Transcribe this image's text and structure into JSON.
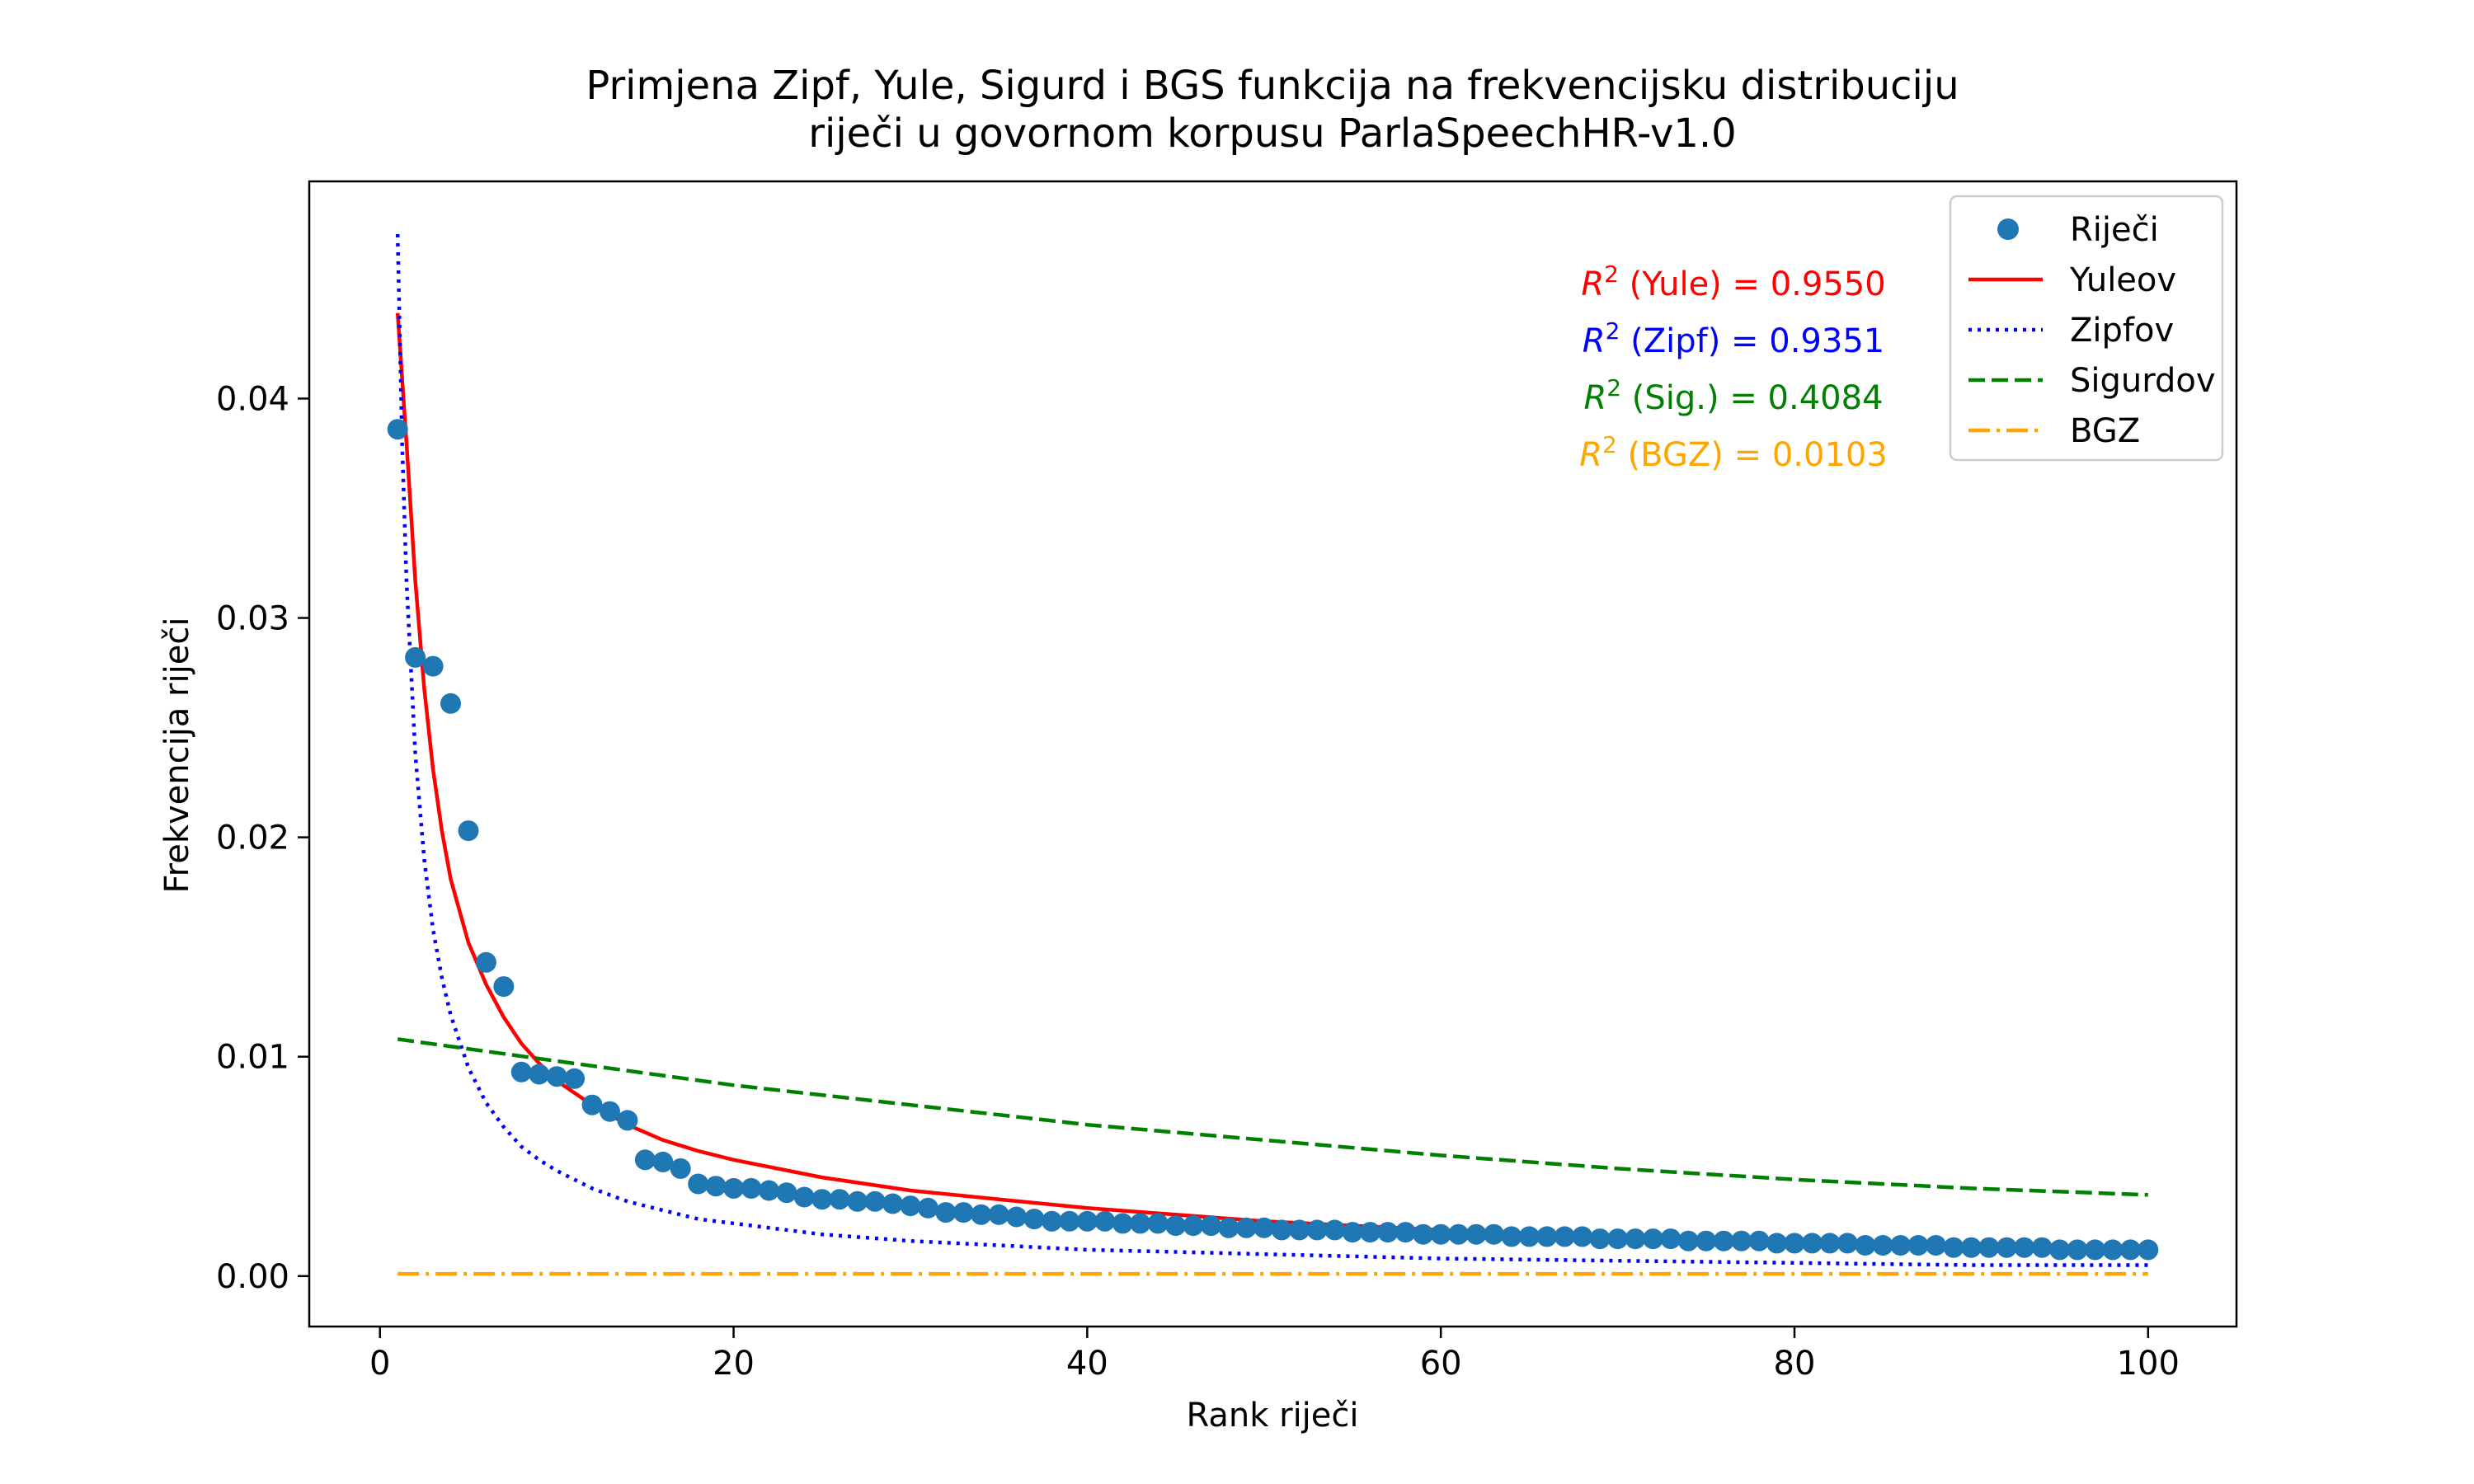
{
  "chart_data": {
    "type": "scatter",
    "title_lines": [
      "Primjena Zipf, Yule, Sigurd i BGS funkcija na frekvencijsku distribuciju",
      "riječi u govornom korpusu ParlaSpeechHR-v1.0"
    ],
    "xlabel": "Rank riječi",
    "ylabel": "Frekvencija riječi",
    "xlim": [
      -4.0,
      105.0
    ],
    "ylim": [
      -0.0023,
      0.0499
    ],
    "x_ticks": [
      0,
      20,
      40,
      60,
      80,
      100
    ],
    "y_ticks": [
      0.0,
      0.01,
      0.02,
      0.03,
      0.04
    ],
    "x_tick_labels": [
      "0",
      "20",
      "40",
      "60",
      "80",
      "100"
    ],
    "y_tick_labels": [
      "0.00",
      "0.01",
      "0.02",
      "0.03",
      "0.04"
    ],
    "grid": false,
    "legend_position": "top-right",
    "legend": [
      {
        "label": "Riječi",
        "kind": "marker",
        "color": "#1f77b4"
      },
      {
        "label": "Yuleov",
        "kind": "solid",
        "color": "#ff0000"
      },
      {
        "label": "Zipfov",
        "kind": "dotted",
        "color": "#0000ff"
      },
      {
        "label": "Sigurdov",
        "kind": "dashed",
        "color": "#008000"
      },
      {
        "label": "BGZ",
        "kind": "dashdot",
        "color": "#ffa500"
      }
    ],
    "annotations": [
      {
        "label": "(Yule) = 0.9550",
        "color": "#ff0000"
      },
      {
        "label": "(Zipf) = 0.9351",
        "color": "#0000ff"
      },
      {
        "label": "(Sig.) = 0.4084",
        "color": "#008000"
      },
      {
        "label": "(BGZ) =  0.0103",
        "color": "#ffa500"
      }
    ],
    "r2_symbol": "R",
    "r2_superscript": "2",
    "scatter": {
      "name": "Riječi",
      "color": "#1f77b4",
      "points": [
        [
          1,
          0.0386
        ],
        [
          2,
          0.0282
        ],
        [
          3,
          0.0278
        ],
        [
          4,
          0.0261
        ],
        [
          5,
          0.0203
        ],
        [
          6,
          0.0143
        ],
        [
          7,
          0.0132
        ],
        [
          8,
          0.0093
        ],
        [
          9,
          0.0092
        ],
        [
          10,
          0.0091
        ],
        [
          11,
          0.009
        ],
        [
          12,
          0.0078
        ],
        [
          13,
          0.0075
        ],
        [
          14,
          0.0071
        ],
        [
          15,
          0.0053
        ],
        [
          16,
          0.0052
        ],
        [
          17,
          0.0049
        ],
        [
          18,
          0.0042
        ],
        [
          19,
          0.0041
        ],
        [
          20,
          0.004
        ],
        [
          21,
          0.004
        ],
        [
          22,
          0.0039
        ],
        [
          23,
          0.0038
        ],
        [
          24,
          0.0036
        ],
        [
          25,
          0.0035
        ],
        [
          26,
          0.0035
        ],
        [
          27,
          0.0034
        ],
        [
          28,
          0.0034
        ],
        [
          29,
          0.0033
        ],
        [
          30,
          0.0032
        ],
        [
          31,
          0.0031
        ],
        [
          32,
          0.0029
        ],
        [
          33,
          0.0029
        ],
        [
          34,
          0.0028
        ],
        [
          35,
          0.0028
        ],
        [
          36,
          0.0027
        ],
        [
          37,
          0.0026
        ],
        [
          38,
          0.0025
        ],
        [
          39,
          0.0025
        ],
        [
          40,
          0.0025
        ],
        [
          41,
          0.0025
        ],
        [
          42,
          0.0024
        ],
        [
          43,
          0.0024
        ],
        [
          44,
          0.0024
        ],
        [
          45,
          0.0023
        ],
        [
          46,
          0.0023
        ],
        [
          47,
          0.0023
        ],
        [
          48,
          0.0022
        ],
        [
          49,
          0.0022
        ],
        [
          50,
          0.0022
        ],
        [
          51,
          0.0021
        ],
        [
          52,
          0.0021
        ],
        [
          53,
          0.0021
        ],
        [
          54,
          0.0021
        ],
        [
          55,
          0.002
        ],
        [
          56,
          0.002
        ],
        [
          57,
          0.002
        ],
        [
          58,
          0.002
        ],
        [
          59,
          0.0019
        ],
        [
          60,
          0.0019
        ],
        [
          61,
          0.0019
        ],
        [
          62,
          0.0019
        ],
        [
          63,
          0.0019
        ],
        [
          64,
          0.0018
        ],
        [
          65,
          0.0018
        ],
        [
          66,
          0.0018
        ],
        [
          67,
          0.0018
        ],
        [
          68,
          0.0018
        ],
        [
          69,
          0.0017
        ],
        [
          70,
          0.0017
        ],
        [
          71,
          0.0017
        ],
        [
          72,
          0.0017
        ],
        [
          73,
          0.0017
        ],
        [
          74,
          0.0016
        ],
        [
          75,
          0.0016
        ],
        [
          76,
          0.0016
        ],
        [
          77,
          0.0016
        ],
        [
          78,
          0.0016
        ],
        [
          79,
          0.0015
        ],
        [
          80,
          0.0015
        ],
        [
          81,
          0.0015
        ],
        [
          82,
          0.0015
        ],
        [
          83,
          0.0015
        ],
        [
          84,
          0.0014
        ],
        [
          85,
          0.0014
        ],
        [
          86,
          0.0014
        ],
        [
          87,
          0.0014
        ],
        [
          88,
          0.0014
        ],
        [
          89,
          0.0013
        ],
        [
          90,
          0.0013
        ],
        [
          91,
          0.0013
        ],
        [
          92,
          0.0013
        ],
        [
          93,
          0.0013
        ],
        [
          94,
          0.0013
        ],
        [
          95,
          0.0012
        ],
        [
          96,
          0.0012
        ],
        [
          97,
          0.0012
        ],
        [
          98,
          0.0012
        ],
        [
          99,
          0.0012
        ],
        [
          100,
          0.0012
        ]
      ]
    },
    "series": [
      {
        "name": "Yuleov",
        "color": "#ff0000",
        "style": "solid",
        "points": [
          [
            1,
            0.0439
          ],
          [
            1.5,
            0.038
          ],
          [
            2,
            0.0317
          ],
          [
            2.5,
            0.0268
          ],
          [
            3,
            0.0231
          ],
          [
            3.5,
            0.0203
          ],
          [
            4,
            0.0181
          ],
          [
            5,
            0.0152
          ],
          [
            6,
            0.0133
          ],
          [
            7,
            0.0118
          ],
          [
            8,
            0.0106
          ],
          [
            9,
            0.0097
          ],
          [
            10,
            0.0089
          ],
          [
            12,
            0.0078
          ],
          [
            14,
            0.0069
          ],
          [
            16,
            0.0062
          ],
          [
            18,
            0.0057
          ],
          [
            20,
            0.0053
          ],
          [
            25,
            0.0045
          ],
          [
            30,
            0.0039
          ],
          [
            35,
            0.0035
          ],
          [
            40,
            0.0031
          ],
          [
            45,
            0.0028
          ],
          [
            50,
            0.0025
          ],
          [
            55,
            0.0023
          ],
          [
            60,
            0.0021
          ],
          [
            65,
            0.0019
          ],
          [
            70,
            0.0018
          ],
          [
            75,
            0.0017
          ],
          [
            80,
            0.0016
          ],
          [
            85,
            0.0015
          ],
          [
            90,
            0.0014
          ],
          [
            95,
            0.0013
          ],
          [
            100,
            0.0012
          ]
        ]
      },
      {
        "name": "Zipfov",
        "color": "#0000ff",
        "style": "dotted",
        "points": [
          [
            1,
            0.0475
          ],
          [
            1.25,
            0.038
          ],
          [
            1.5,
            0.0317
          ],
          [
            2,
            0.0238
          ],
          [
            2.5,
            0.019
          ],
          [
            3,
            0.0158
          ],
          [
            3.5,
            0.0136
          ],
          [
            4,
            0.0119
          ],
          [
            5,
            0.0095
          ],
          [
            6,
            0.0079
          ],
          [
            7,
            0.0068
          ],
          [
            8,
            0.0059
          ],
          [
            9,
            0.0053
          ],
          [
            10,
            0.0048
          ],
          [
            12,
            0.004
          ],
          [
            14,
            0.0034
          ],
          [
            16,
            0.003
          ],
          [
            18,
            0.0026
          ],
          [
            20,
            0.0024
          ],
          [
            25,
            0.0019
          ],
          [
            30,
            0.0016
          ],
          [
            35,
            0.0014
          ],
          [
            40,
            0.0012
          ],
          [
            45,
            0.0011
          ],
          [
            50,
            0.001
          ],
          [
            60,
            0.0008
          ],
          [
            70,
            0.0007
          ],
          [
            80,
            0.0006
          ],
          [
            90,
            0.0005
          ],
          [
            100,
            0.0005
          ]
        ]
      },
      {
        "name": "Sigurdov",
        "color": "#008000",
        "style": "dashed",
        "points": [
          [
            1,
            0.0108
          ],
          [
            10,
            0.0098
          ],
          [
            20,
            0.0087
          ],
          [
            30,
            0.0078
          ],
          [
            40,
            0.0069
          ],
          [
            50,
            0.0062
          ],
          [
            60,
            0.0055
          ],
          [
            70,
            0.0049
          ],
          [
            80,
            0.0044
          ],
          [
            90,
            0.004
          ],
          [
            100,
            0.0037
          ]
        ]
      },
      {
        "name": "BGZ",
        "color": "#ffa500",
        "style": "dashdot",
        "points": [
          [
            1,
            0.0001
          ],
          [
            100,
            0.0001
          ]
        ]
      }
    ]
  }
}
